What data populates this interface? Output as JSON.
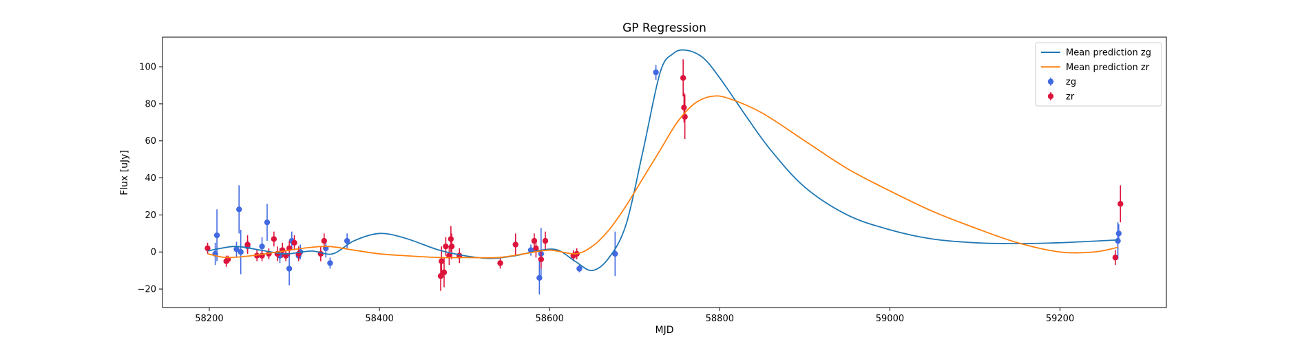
{
  "chart_data": {
    "type": "scatter",
    "title": "GP Regression",
    "xlabel": "MJD",
    "ylabel": "Flux [uJy]",
    "xlim": [
      58145,
      59325
    ],
    "ylim": [
      -30,
      116
    ],
    "xticks": [
      58200,
      58400,
      58600,
      58800,
      59000,
      59200
    ],
    "yticks": [
      -20,
      0,
      20,
      40,
      60,
      80,
      100
    ],
    "legend_position": "top-right",
    "colors": {
      "mean_zg": "#1f77b4",
      "mean_zr": "#ff7f0e",
      "zg": "#4169e1",
      "zr": "#dc143c"
    },
    "legend": [
      {
        "label": "Mean prediction zg",
        "kind": "line",
        "color_key": "mean_zg"
      },
      {
        "label": "Mean prediction zr",
        "kind": "line",
        "color_key": "mean_zr"
      },
      {
        "label": "zg",
        "kind": "point",
        "color_key": "zg"
      },
      {
        "label": "zr",
        "kind": "point",
        "color_key": "zr"
      }
    ],
    "lines": [
      {
        "name": "Mean prediction zg",
        "color_key": "mean_zg",
        "x": [
          58198,
          58230,
          58260,
          58290,
          58320,
          58345,
          58370,
          58400,
          58430,
          58470,
          58500,
          58530,
          58560,
          58590,
          58610,
          58630,
          58650,
          58670,
          58690,
          58710,
          58730,
          58745,
          58760,
          58780,
          58800,
          58830,
          58860,
          58900,
          58950,
          59000,
          59050,
          59100,
          59150,
          59200,
          59268
        ],
        "y": [
          0.5,
          3,
          1,
          -1,
          0.5,
          -1,
          6,
          10,
          7.5,
          1,
          -2,
          -3.5,
          -2,
          1,
          1,
          -5,
          -10,
          -3,
          15,
          55,
          97,
          107,
          109,
          105,
          94,
          74,
          55,
          35,
          20,
          12,
          7,
          5,
          4.5,
          5,
          6.5
        ]
      },
      {
        "name": "Mean prediction zr",
        "color_key": "mean_zr",
        "x": [
          58198,
          58220,
          58250,
          58280,
          58310,
          58340,
          58370,
          58400,
          58430,
          58470,
          58500,
          58540,
          58570,
          58600,
          58630,
          58650,
          58670,
          58690,
          58710,
          58730,
          58750,
          58770,
          58790,
          58810,
          58850,
          58900,
          58950,
          59000,
          59050,
          59100,
          59150,
          59200,
          59240,
          59268
        ],
        "y": [
          -1,
          -3,
          -2,
          0,
          2,
          3,
          1,
          -1,
          -2,
          -3,
          -3,
          -3,
          -1,
          1,
          -1,
          3,
          12,
          25,
          40,
          55,
          70,
          80,
          84,
          83,
          75,
          60,
          45,
          33,
          22,
          13,
          5,
          0,
          0,
          2.5
        ]
      }
    ],
    "series": [
      {
        "name": "zg",
        "color_key": "zg",
        "points": [
          [
            58207,
            -1,
            6
          ],
          [
            58209,
            9,
            14
          ],
          [
            58232,
            1.5,
            4
          ],
          [
            58235,
            23,
            13
          ],
          [
            58237,
            0,
            12
          ],
          [
            58245,
            3,
            3
          ],
          [
            58262,
            3,
            5
          ],
          [
            58268,
            16,
            10
          ],
          [
            58283,
            -2,
            4
          ],
          [
            58294,
            -9,
            9
          ],
          [
            58297,
            6,
            5
          ],
          [
            58305,
            -2,
            3
          ],
          [
            58307,
            0,
            4
          ],
          [
            58337,
            2,
            5
          ],
          [
            58342,
            -6,
            3
          ],
          [
            58362,
            6,
            4
          ],
          [
            58578,
            1,
            3
          ],
          [
            58588,
            -14,
            9
          ],
          [
            58590,
            -1,
            14
          ],
          [
            58635,
            -9,
            2
          ],
          [
            58677,
            -1,
            12
          ],
          [
            58725,
            97,
            4
          ],
          [
            59268,
            6,
            10
          ],
          [
            59269,
            10,
            5
          ]
        ]
      },
      {
        "name": "zr",
        "color_key": "zr",
        "points": [
          [
            58198,
            2,
            3
          ],
          [
            58220,
            -5,
            3
          ],
          [
            58222,
            -4,
            2
          ],
          [
            58245,
            4,
            5
          ],
          [
            58256,
            -2,
            3
          ],
          [
            58262,
            -2,
            3
          ],
          [
            58270,
            -1,
            3
          ],
          [
            58276,
            7,
            4
          ],
          [
            58280,
            -1,
            4
          ],
          [
            58286,
            1,
            4
          ],
          [
            58290,
            -2,
            3
          ],
          [
            58294,
            2,
            4
          ],
          [
            58300,
            5,
            4
          ],
          [
            58305,
            -1,
            4
          ],
          [
            58331,
            -1,
            4
          ],
          [
            58335,
            6,
            4
          ],
          [
            58472,
            -13,
            8
          ],
          [
            58473,
            -5,
            8
          ],
          [
            58476,
            -11,
            8
          ],
          [
            58478,
            3,
            5
          ],
          [
            58482,
            -2,
            5
          ],
          [
            58484,
            7,
            7
          ],
          [
            58485,
            3,
            7
          ],
          [
            58494,
            -2,
            4
          ],
          [
            58542,
            -6,
            3
          ],
          [
            58560,
            4,
            6
          ],
          [
            58582,
            6,
            4
          ],
          [
            58584,
            2,
            5
          ],
          [
            58590,
            -4,
            5
          ],
          [
            58595,
            6,
            5
          ],
          [
            58628,
            -2,
            3
          ],
          [
            58632,
            -1,
            3
          ],
          [
            58757,
            94,
            10
          ],
          [
            58758,
            78,
            8
          ],
          [
            58759,
            73,
            12
          ],
          [
            59265,
            -3,
            4
          ],
          [
            59271,
            26,
            10
          ]
        ]
      }
    ]
  }
}
